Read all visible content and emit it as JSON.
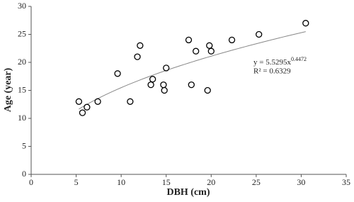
{
  "chart_data": {
    "type": "scatter",
    "x_label": "DBH (cm)",
    "y_label": "Age (year)",
    "x": [
      5.3,
      5.7,
      6.2,
      7.4,
      9.6,
      11,
      11.8,
      12.1,
      13.3,
      13.5,
      14.7,
      14.8,
      15,
      17.5,
      17.8,
      18.3,
      19.6,
      19.8,
      20,
      22.3,
      25.3,
      30.5
    ],
    "values": [
      13,
      11,
      12,
      13,
      18,
      13,
      21,
      23,
      16,
      17,
      16,
      15,
      19,
      24,
      16,
      22,
      15,
      23,
      22,
      24,
      25,
      27
    ],
    "xlim": [
      0,
      35
    ],
    "xticks": [
      0,
      5,
      10,
      15,
      20,
      25,
      30,
      35
    ],
    "ylim": [
      0,
      30
    ],
    "yticks": [
      0,
      5,
      10,
      15,
      20,
      25,
      30
    ],
    "color": "#000000",
    "trendline": {
      "type": "power",
      "coefficient": 5.5295,
      "exponent": 0.4472,
      "color": "#888888",
      "equation_label": "y = 5.5295x",
      "exponent_label": "0.4472",
      "r2_label": "R² = 0.6329"
    }
  }
}
